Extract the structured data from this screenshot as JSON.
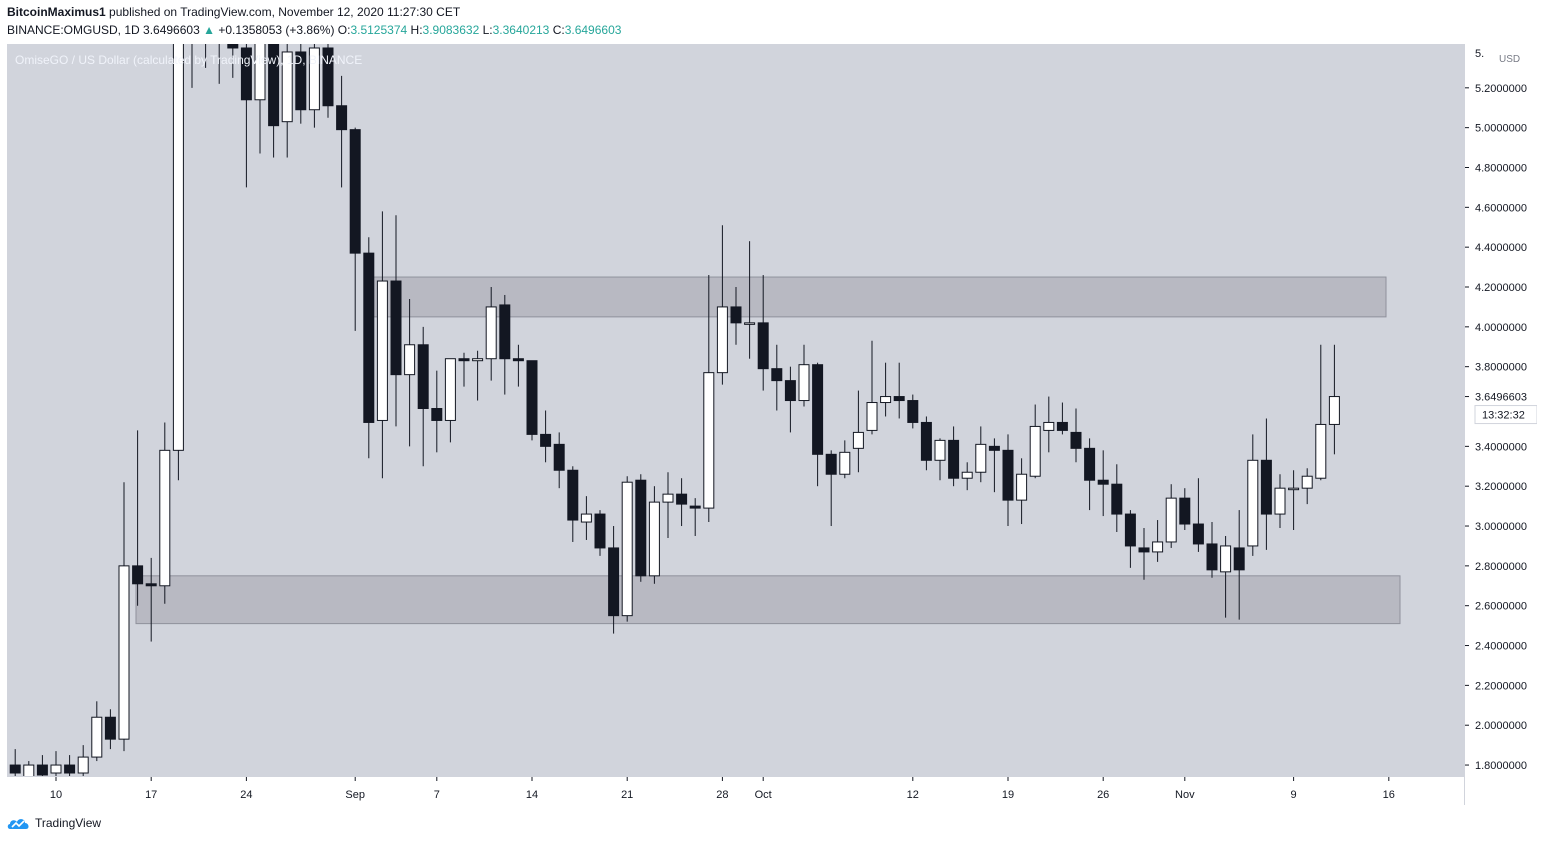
{
  "header": {
    "author": "BitcoinMaximus1",
    "published": "published on TradingView.com, November 12, 2020 11:27:30 CET",
    "symbol": "BINANCE:OMGUSD, 1D",
    "last": "3.6496603",
    "change": "+0.1358053 (+3.86%)",
    "o_label": "O:",
    "o_value": "3.5125374",
    "h_label": "H:",
    "h_value": "3.9083632",
    "l_label": "L:",
    "l_value": "3.3640213",
    "c_label": "C:",
    "c_value": "3.6496603"
  },
  "pane_label": "OmiseGO / US Dollar (calculated by TradingView), 1D, BINANCE",
  "price_scale": {
    "currency": "USD",
    "current_price": "3.6496603",
    "countdown": "13:32:32",
    "top_partial": "5."
  },
  "footer": {
    "brand": "TradingView"
  },
  "colors": {
    "bg": "#d1d4dc",
    "up_fill": "#ffffff",
    "down_fill": "#131722",
    "zone": "#b8b9c2"
  },
  "chart_data": {
    "type": "candlestick",
    "x_axis_labels": [
      "10",
      "17",
      "24",
      "Sep",
      "7",
      "14",
      "21",
      "28",
      "Oct",
      "12",
      "19",
      "26",
      "Nov",
      "9",
      "16"
    ],
    "y_ticks": [
      "5.2000000",
      "5.0000000",
      "4.8000000",
      "4.6000000",
      "4.4000000",
      "4.2000000",
      "4.0000000",
      "3.8000000",
      "3.6000000",
      "3.4000000",
      "3.2000000",
      "3.0000000",
      "2.8000000",
      "2.6000000",
      "2.4000000",
      "2.2000000",
      "2.0000000",
      "1.8000000"
    ],
    "ylim": [
      1.745,
      5.42
    ],
    "zones": [
      {
        "from": 4.05,
        "to": 4.25
      },
      {
        "from": 2.51,
        "to": 2.75
      }
    ],
    "candles": [
      {
        "date": "2020-08-07",
        "o": 1.8,
        "h": 1.88,
        "l": 1.74,
        "c": 1.76
      },
      {
        "date": "2020-08-08",
        "o": 1.74,
        "h": 1.82,
        "l": 1.7,
        "c": 1.8
      },
      {
        "date": "2020-08-09",
        "o": 1.8,
        "h": 1.85,
        "l": 1.74,
        "c": 1.75
      },
      {
        "date": "2020-08-10",
        "o": 1.76,
        "h": 1.87,
        "l": 1.73,
        "c": 1.8
      },
      {
        "date": "2020-08-11",
        "o": 1.8,
        "h": 1.85,
        "l": 1.72,
        "c": 1.76
      },
      {
        "date": "2020-08-12",
        "o": 1.76,
        "h": 1.9,
        "l": 1.74,
        "c": 1.84
      },
      {
        "date": "2020-08-13",
        "o": 1.84,
        "h": 2.12,
        "l": 1.82,
        "c": 2.04
      },
      {
        "date": "2020-08-14",
        "o": 2.04,
        "h": 2.08,
        "l": 1.88,
        "c": 1.93
      },
      {
        "date": "2020-08-15",
        "o": 1.93,
        "h": 3.22,
        "l": 1.87,
        "c": 2.8
      },
      {
        "date": "2020-08-16",
        "o": 2.8,
        "h": 3.48,
        "l": 2.6,
        "c": 2.71
      },
      {
        "date": "2020-08-17",
        "o": 2.71,
        "h": 2.84,
        "l": 2.42,
        "c": 2.7
      },
      {
        "date": "2020-08-18",
        "o": 2.7,
        "h": 3.52,
        "l": 2.61,
        "c": 3.38
      },
      {
        "date": "2020-08-19",
        "o": 3.38,
        "h": 5.6,
        "l": 3.23,
        "c": 5.55
      },
      {
        "date": "2020-08-20",
        "o": 5.55,
        "h": 5.8,
        "l": 5.2,
        "c": 5.6
      },
      {
        "date": "2020-08-21",
        "o": 5.6,
        "h": 5.8,
        "l": 5.3,
        "c": 5.5
      },
      {
        "date": "2020-08-22",
        "o": 5.5,
        "h": 5.6,
        "l": 5.22,
        "c": 5.45
      },
      {
        "date": "2020-08-23",
        "o": 5.45,
        "h": 5.55,
        "l": 5.25,
        "c": 5.4
      },
      {
        "date": "2020-08-24",
        "o": 5.4,
        "h": 5.5,
        "l": 4.7,
        "c": 5.14
      },
      {
        "date": "2020-08-25",
        "o": 5.14,
        "h": 5.45,
        "l": 4.87,
        "c": 5.43
      },
      {
        "date": "2020-08-26",
        "o": 5.43,
        "h": 5.45,
        "l": 4.85,
        "c": 5.01
      },
      {
        "date": "2020-08-27",
        "o": 5.03,
        "h": 5.45,
        "l": 4.85,
        "c": 5.38
      },
      {
        "date": "2020-08-28",
        "o": 5.38,
        "h": 5.42,
        "l": 5.02,
        "c": 5.09
      },
      {
        "date": "2020-08-29",
        "o": 5.09,
        "h": 5.45,
        "l": 5.0,
        "c": 5.4
      },
      {
        "date": "2020-08-30",
        "o": 5.4,
        "h": 5.42,
        "l": 5.05,
        "c": 5.11
      },
      {
        "date": "2020-08-31",
        "o": 5.11,
        "h": 5.26,
        "l": 4.7,
        "c": 4.99
      },
      {
        "date": "2020-09-01",
        "o": 4.99,
        "h": 5.0,
        "l": 3.98,
        "c": 4.37
      },
      {
        "date": "2020-09-02",
        "o": 4.37,
        "h": 4.45,
        "l": 3.34,
        "c": 3.52
      },
      {
        "date": "2020-09-03",
        "o": 3.53,
        "h": 4.58,
        "l": 3.24,
        "c": 4.23
      },
      {
        "date": "2020-09-04",
        "o": 4.23,
        "h": 4.56,
        "l": 3.5,
        "c": 3.76
      },
      {
        "date": "2020-09-05",
        "o": 3.76,
        "h": 4.14,
        "l": 3.4,
        "c": 3.91
      },
      {
        "date": "2020-09-06",
        "o": 3.91,
        "h": 4.0,
        "l": 3.3,
        "c": 3.59
      },
      {
        "date": "2020-09-07",
        "o": 3.59,
        "h": 3.78,
        "l": 3.37,
        "c": 3.53
      },
      {
        "date": "2020-09-08",
        "o": 3.53,
        "h": 3.83,
        "l": 3.42,
        "c": 3.84
      },
      {
        "date": "2020-09-09",
        "o": 3.84,
        "h": 3.87,
        "l": 3.7,
        "c": 3.83
      },
      {
        "date": "2020-09-10",
        "o": 3.83,
        "h": 3.88,
        "l": 3.63,
        "c": 3.84
      },
      {
        "date": "2020-09-11",
        "o": 3.84,
        "h": 4.2,
        "l": 3.73,
        "c": 4.1
      },
      {
        "date": "2020-09-12",
        "o": 4.11,
        "h": 4.16,
        "l": 3.66,
        "c": 3.84
      },
      {
        "date": "2020-09-13",
        "o": 3.84,
        "h": 3.91,
        "l": 3.7,
        "c": 3.83
      },
      {
        "date": "2020-09-14",
        "o": 3.83,
        "h": 3.83,
        "l": 3.43,
        "c": 3.46
      },
      {
        "date": "2020-09-15",
        "o": 3.46,
        "h": 3.58,
        "l": 3.32,
        "c": 3.4
      },
      {
        "date": "2020-09-16",
        "o": 3.41,
        "h": 3.47,
        "l": 3.19,
        "c": 3.28
      },
      {
        "date": "2020-09-17",
        "o": 3.28,
        "h": 3.3,
        "l": 2.92,
        "c": 3.03
      },
      {
        "date": "2020-09-18",
        "o": 3.02,
        "h": 3.15,
        "l": 2.93,
        "c": 3.06
      },
      {
        "date": "2020-09-19",
        "o": 3.06,
        "h": 3.08,
        "l": 2.85,
        "c": 2.89
      },
      {
        "date": "2020-09-20",
        "o": 2.89,
        "h": 3.0,
        "l": 2.46,
        "c": 2.55
      },
      {
        "date": "2020-09-21",
        "o": 2.55,
        "h": 3.25,
        "l": 2.52,
        "c": 3.22
      },
      {
        "date": "2020-09-22",
        "o": 3.23,
        "h": 3.26,
        "l": 2.72,
        "c": 2.75
      },
      {
        "date": "2020-09-23",
        "o": 2.75,
        "h": 3.2,
        "l": 2.71,
        "c": 3.12
      },
      {
        "date": "2020-09-24",
        "o": 3.12,
        "h": 3.27,
        "l": 2.94,
        "c": 3.16
      },
      {
        "date": "2020-09-25",
        "o": 3.16,
        "h": 3.24,
        "l": 3.0,
        "c": 3.11
      },
      {
        "date": "2020-09-26",
        "o": 3.1,
        "h": 3.14,
        "l": 2.95,
        "c": 3.09
      },
      {
        "date": "2020-09-27",
        "o": 3.09,
        "h": 4.26,
        "l": 3.02,
        "c": 3.77
      },
      {
        "date": "2020-09-28",
        "o": 3.77,
        "h": 4.51,
        "l": 3.71,
        "c": 4.1
      },
      {
        "date": "2020-09-29",
        "o": 4.1,
        "h": 4.2,
        "l": 3.91,
        "c": 4.02
      },
      {
        "date": "2020-09-30",
        "o": 4.02,
        "h": 4.43,
        "l": 3.84,
        "c": 4.02
      },
      {
        "date": "2020-10-01",
        "o": 4.02,
        "h": 4.26,
        "l": 3.68,
        "c": 3.79
      },
      {
        "date": "2020-10-02",
        "o": 3.79,
        "h": 3.91,
        "l": 3.58,
        "c": 3.73
      },
      {
        "date": "2020-10-03",
        "o": 3.73,
        "h": 3.8,
        "l": 3.47,
        "c": 3.63
      },
      {
        "date": "2020-10-04",
        "o": 3.63,
        "h": 3.91,
        "l": 3.6,
        "c": 3.81
      },
      {
        "date": "2020-10-05",
        "o": 3.81,
        "h": 3.82,
        "l": 3.2,
        "c": 3.36
      },
      {
        "date": "2020-10-06",
        "o": 3.36,
        "h": 3.38,
        "l": 3.0,
        "c": 3.26
      },
      {
        "date": "2020-10-07",
        "o": 3.26,
        "h": 3.43,
        "l": 3.24,
        "c": 3.37
      },
      {
        "date": "2020-10-08",
        "o": 3.39,
        "h": 3.68,
        "l": 3.27,
        "c": 3.47
      },
      {
        "date": "2020-10-09",
        "o": 3.48,
        "h": 3.93,
        "l": 3.46,
        "c": 3.62
      },
      {
        "date": "2020-10-10",
        "o": 3.62,
        "h": 3.82,
        "l": 3.55,
        "c": 3.65
      },
      {
        "date": "2020-10-11",
        "o": 3.65,
        "h": 3.82,
        "l": 3.54,
        "c": 3.63
      },
      {
        "date": "2020-10-12",
        "o": 3.63,
        "h": 3.66,
        "l": 3.49,
        "c": 3.52
      },
      {
        "date": "2020-10-13",
        "o": 3.52,
        "h": 3.55,
        "l": 3.28,
        "c": 3.33
      },
      {
        "date": "2020-10-14",
        "o": 3.33,
        "h": 3.44,
        "l": 3.23,
        "c": 3.43
      },
      {
        "date": "2020-10-15",
        "o": 3.43,
        "h": 3.5,
        "l": 3.2,
        "c": 3.24
      },
      {
        "date": "2020-10-16",
        "o": 3.24,
        "h": 3.32,
        "l": 3.18,
        "c": 3.27
      },
      {
        "date": "2020-10-17",
        "o": 3.27,
        "h": 3.5,
        "l": 3.22,
        "c": 3.41
      },
      {
        "date": "2020-10-18",
        "o": 3.4,
        "h": 3.44,
        "l": 3.17,
        "c": 3.38
      },
      {
        "date": "2020-10-19",
        "o": 3.38,
        "h": 3.46,
        "l": 3.0,
        "c": 3.13
      },
      {
        "date": "2020-10-20",
        "o": 3.13,
        "h": 3.34,
        "l": 3.01,
        "c": 3.26
      },
      {
        "date": "2020-10-21",
        "o": 3.25,
        "h": 3.61,
        "l": 3.24,
        "c": 3.5
      },
      {
        "date": "2020-10-22",
        "o": 3.48,
        "h": 3.65,
        "l": 3.37,
        "c": 3.52
      },
      {
        "date": "2020-10-23",
        "o": 3.52,
        "h": 3.62,
        "l": 3.46,
        "c": 3.48
      },
      {
        "date": "2020-10-24",
        "o": 3.47,
        "h": 3.59,
        "l": 3.32,
        "c": 3.39
      },
      {
        "date": "2020-10-25",
        "o": 3.39,
        "h": 3.44,
        "l": 3.08,
        "c": 3.23
      },
      {
        "date": "2020-10-26",
        "o": 3.23,
        "h": 3.38,
        "l": 3.05,
        "c": 3.21
      },
      {
        "date": "2020-10-27",
        "o": 3.21,
        "h": 3.31,
        "l": 2.97,
        "c": 3.06
      },
      {
        "date": "2020-10-28",
        "o": 3.06,
        "h": 3.08,
        "l": 2.79,
        "c": 2.9
      },
      {
        "date": "2020-10-29",
        "o": 2.89,
        "h": 2.99,
        "l": 2.73,
        "c": 2.87
      },
      {
        "date": "2020-10-30",
        "o": 2.87,
        "h": 3.03,
        "l": 2.82,
        "c": 2.92
      },
      {
        "date": "2020-10-31",
        "o": 2.92,
        "h": 3.21,
        "l": 2.89,
        "c": 3.14
      },
      {
        "date": "2020-11-01",
        "o": 3.14,
        "h": 3.19,
        "l": 2.98,
        "c": 3.01
      },
      {
        "date": "2020-11-02",
        "o": 3.01,
        "h": 3.24,
        "l": 2.87,
        "c": 2.91
      },
      {
        "date": "2020-11-03",
        "o": 2.91,
        "h": 3.02,
        "l": 2.74,
        "c": 2.78
      },
      {
        "date": "2020-11-04",
        "o": 2.77,
        "h": 2.95,
        "l": 2.54,
        "c": 2.9
      },
      {
        "date": "2020-11-05",
        "o": 2.89,
        "h": 3.08,
        "l": 2.53,
        "c": 2.78
      },
      {
        "date": "2020-11-06",
        "o": 2.9,
        "h": 3.46,
        "l": 2.85,
        "c": 3.33
      },
      {
        "date": "2020-11-07",
        "o": 3.33,
        "h": 3.54,
        "l": 2.88,
        "c": 3.06
      },
      {
        "date": "2020-11-08",
        "o": 3.06,
        "h": 3.26,
        "l": 2.99,
        "c": 3.19
      },
      {
        "date": "2020-11-09",
        "o": 3.19,
        "h": 3.28,
        "l": 2.98,
        "c": 3.19
      },
      {
        "date": "2020-11-10",
        "o": 3.19,
        "h": 3.29,
        "l": 3.11,
        "c": 3.25
      },
      {
        "date": "2020-11-11",
        "o": 3.24,
        "h": 3.91,
        "l": 3.23,
        "c": 3.51
      },
      {
        "date": "2020-11-12",
        "o": 3.51,
        "h": 3.91,
        "l": 3.36,
        "c": 3.65
      }
    ]
  }
}
